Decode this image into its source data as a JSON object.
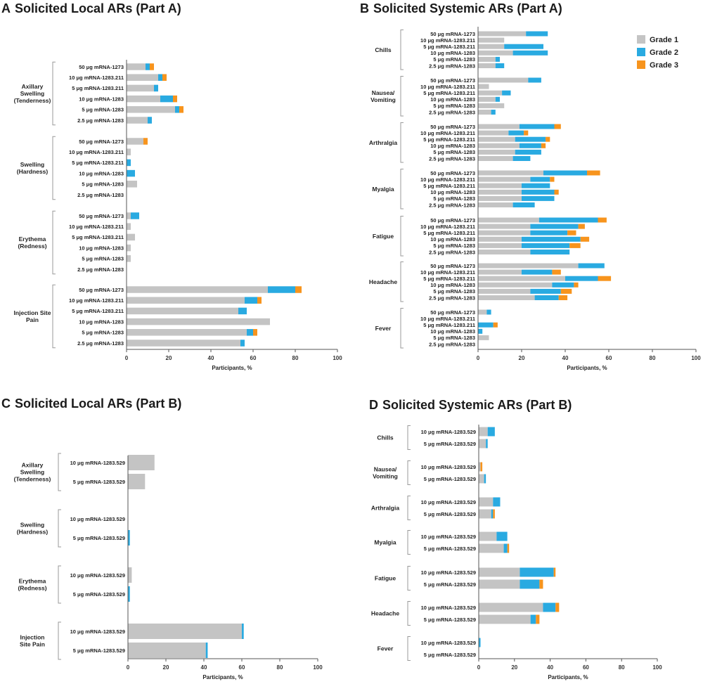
{
  "colors": {
    "grade1": "#c4c4c4",
    "grade2": "#29aae1",
    "grade3": "#f7941d"
  },
  "legend": [
    "Grade 1",
    "Grade 2",
    "Grade 3"
  ],
  "chart_data": [
    {
      "type": "bar",
      "orientation": "horizontal",
      "stacked": true,
      "panel": "A",
      "title": "Solicited Local ARs (Part  A)",
      "xlabel": "Participants, %",
      "xlim": [
        0,
        100
      ],
      "xticks": [
        0,
        20,
        40,
        60,
        80,
        100
      ],
      "groups": [
        {
          "name": [
            "Axillary",
            "Swelling",
            "(Tenderness)"
          ],
          "rows": [
            {
              "label": "50 μg mRNA-1273",
              "values": [
                9,
                2,
                2
              ]
            },
            {
              "label": "10 μg mRNA-1283.211",
              "values": [
                15,
                2,
                2
              ]
            },
            {
              "label": "5 μg mRNA-1283.211",
              "values": [
                13,
                2,
                0
              ]
            },
            {
              "label": "10 μg mRNA-1283",
              "values": [
                16,
                6,
                2
              ]
            },
            {
              "label": "5 μg mRNA-1283",
              "values": [
                23,
                2,
                2
              ]
            },
            {
              "label": "2.5 μg mRNA-1283",
              "values": [
                10,
                2,
                0
              ]
            }
          ]
        },
        {
          "name": [
            "Swelling",
            "(Hardness)"
          ],
          "rows": [
            {
              "label": "50 μg mRNA-1273",
              "values": [
                8,
                0,
                2
              ]
            },
            {
              "label": "10 μg mRNA-1283.211",
              "values": [
                2,
                0,
                0
              ]
            },
            {
              "label": "5 μg mRNA-1283.211",
              "values": [
                0,
                2,
                0
              ]
            },
            {
              "label": "10 μg mRNA-1283",
              "values": [
                0,
                4,
                0
              ]
            },
            {
              "label": "5 μg mRNA-1283",
              "values": [
                5,
                0,
                0
              ]
            },
            {
              "label": "2.5 μg mRNA-1283",
              "values": [
                0,
                0,
                0
              ]
            }
          ]
        },
        {
          "name": [
            "Erythema",
            "(Redness)"
          ],
          "rows": [
            {
              "label": "50 μg mRNA-1273",
              "values": [
                2,
                4,
                0
              ]
            },
            {
              "label": "10 μg mRNA-1283.211",
              "values": [
                2,
                0,
                0
              ]
            },
            {
              "label": "5 μg mRNA-1283.211",
              "values": [
                4,
                0,
                0
              ]
            },
            {
              "label": "10 μg mRNA-1283",
              "values": [
                2,
                0,
                0
              ]
            },
            {
              "label": "5 μg mRNA-1283",
              "values": [
                2,
                0,
                0
              ]
            },
            {
              "label": "2.5 μg mRNA-1283",
              "values": [
                0,
                0,
                0
              ]
            }
          ]
        },
        {
          "name": [
            "Injection Site",
            "Pain"
          ],
          "rows": [
            {
              "label": "50 μg mRNA-1273",
              "values": [
                67,
                13,
                3
              ]
            },
            {
              "label": "10 μg mRNA-1283.211",
              "values": [
                56,
                6,
                2
              ]
            },
            {
              "label": "5 μg mRNA-1283.211",
              "values": [
                53,
                4,
                0
              ]
            },
            {
              "label": "10 μg mRNA-1283",
              "values": [
                68,
                0,
                0
              ]
            },
            {
              "label": "5 μg mRNA-1283",
              "values": [
                57,
                3,
                2
              ]
            },
            {
              "label": "2.5 μg mRNA-1283",
              "values": [
                54,
                2,
                0
              ]
            }
          ]
        }
      ]
    },
    {
      "type": "bar",
      "orientation": "horizontal",
      "stacked": true,
      "panel": "B",
      "title": "Solicited Systemic ARs (Part  A)",
      "xlabel": "Participants, %",
      "xlim": [
        0,
        100
      ],
      "xticks": [
        0,
        20,
        40,
        60,
        80,
        100
      ],
      "groups": [
        {
          "name": [
            "Chills"
          ],
          "rows": [
            {
              "label": "50 μg mRNA-1273",
              "values": [
                22,
                10,
                0
              ]
            },
            {
              "label": "10 μg mRNA-1283.211",
              "values": [
                12,
                0,
                0
              ]
            },
            {
              "label": "5 μg mRNA-1283.211",
              "values": [
                12,
                18,
                0
              ]
            },
            {
              "label": "10 μg mRNA-1283",
              "values": [
                16,
                16,
                0
              ]
            },
            {
              "label": "5 μg mRNA-1283",
              "values": [
                8,
                2,
                0
              ]
            },
            {
              "label": "2.5 μg mRNA-1283",
              "values": [
                8,
                4,
                0
              ]
            }
          ]
        },
        {
          "name": [
            "Nausea/",
            "Vomiting"
          ],
          "rows": [
            {
              "label": "50 μg mRNA-1273",
              "values": [
                23,
                6,
                0
              ]
            },
            {
              "label": "10 μg mRNA-1283.211",
              "values": [
                5,
                0,
                0
              ]
            },
            {
              "label": "5 μg mRNA-1283.211",
              "values": [
                11,
                4,
                0
              ]
            },
            {
              "label": "10 μg mRNA-1283",
              "values": [
                8,
                2,
                0
              ]
            },
            {
              "label": "5 μg mRNA-1283",
              "values": [
                12,
                0,
                0
              ]
            },
            {
              "label": "2.5 μg mRNA-1283",
              "values": [
                6,
                2,
                0
              ]
            }
          ]
        },
        {
          "name": [
            "Arthralgia"
          ],
          "rows": [
            {
              "label": "50 μg mRNA-1273",
              "values": [
                19,
                16,
                3
              ]
            },
            {
              "label": "10 μg mRNA-1283.211",
              "values": [
                14,
                7,
                2
              ]
            },
            {
              "label": "5 μg mRNA-1283.211",
              "values": [
                17,
                14,
                2
              ]
            },
            {
              "label": "10 μg mRNA-1283",
              "values": [
                19,
                10,
                2
              ]
            },
            {
              "label": "5 μg mRNA-1283",
              "values": [
                17,
                12,
                0
              ]
            },
            {
              "label": "2.5 μg mRNA-1283",
              "values": [
                16,
                8,
                0
              ]
            }
          ]
        },
        {
          "name": [
            "Myalgia"
          ],
          "rows": [
            {
              "label": "50 μg mRNA-1273",
              "values": [
                30,
                20,
                6
              ]
            },
            {
              "label": "10 μg mRNA-1283.211",
              "values": [
                24,
                9,
                2
              ]
            },
            {
              "label": "5 μg mRNA-1283.211",
              "values": [
                20,
                13,
                0
              ]
            },
            {
              "label": "10 μg mRNA-1283",
              "values": [
                20,
                15,
                2
              ]
            },
            {
              "label": "5 μg mRNA-1283",
              "values": [
                20,
                15,
                0
              ]
            },
            {
              "label": "2.5 μg mRNA-1283",
              "values": [
                16,
                10,
                0
              ]
            }
          ]
        },
        {
          "name": [
            "Fatigue"
          ],
          "rows": [
            {
              "label": "50 μg mRNA-1273",
              "values": [
                28,
                27,
                4
              ]
            },
            {
              "label": "10 μg mRNA-1283.211",
              "values": [
                24,
                22,
                3
              ]
            },
            {
              "label": "5 μg mRNA-1283.211",
              "values": [
                24,
                17,
                4
              ]
            },
            {
              "label": "10 μg mRNA-1283",
              "values": [
                20,
                27,
                4
              ]
            },
            {
              "label": "5 μg mRNA-1283",
              "values": [
                20,
                22,
                5
              ]
            },
            {
              "label": "2.5 μg mRNA-1283",
              "values": [
                24,
                18,
                0
              ]
            }
          ]
        },
        {
          "name": [
            "Headache"
          ],
          "rows": [
            {
              "label": "50 μg mRNA-1273",
              "values": [
                46,
                12,
                0
              ]
            },
            {
              "label": "10 μg mRNA-1283.211",
              "values": [
                20,
                14,
                4
              ]
            },
            {
              "label": "5 μg mRNA-1283.211",
              "values": [
                40,
                15,
                6
              ]
            },
            {
              "label": "10 μg mRNA-1283",
              "values": [
                34,
                10,
                2
              ]
            },
            {
              "label": "5 μg mRNA-1283",
              "values": [
                24,
                14,
                5
              ]
            },
            {
              "label": "2.5 μg mRNA-1283",
              "values": [
                26,
                11,
                4
              ]
            }
          ]
        },
        {
          "name": [
            "Fever"
          ],
          "rows": [
            {
              "label": "50 μg mRNA-1273",
              "values": [
                4,
                2,
                0
              ]
            },
            {
              "label": "10 μg mRNA-1283.211",
              "values": [
                0,
                0,
                0
              ]
            },
            {
              "label": "5 μg mRNA-1283.211",
              "values": [
                0,
                7,
                2
              ]
            },
            {
              "label": "10 μg mRNA-1283",
              "values": [
                0,
                2,
                0
              ]
            },
            {
              "label": "5 μg mRNA-1283",
              "values": [
                5,
                0,
                0
              ]
            },
            {
              "label": "2.5 μg mRNA-1283",
              "values": [
                0,
                0,
                0
              ]
            }
          ]
        }
      ]
    },
    {
      "type": "bar",
      "orientation": "horizontal",
      "stacked": true,
      "panel": "C",
      "title": "Solicited Local ARs (Part  B)",
      "xlabel": "Participants, %",
      "xlim": [
        0,
        100
      ],
      "xticks": [
        0,
        20,
        40,
        60,
        80,
        100
      ],
      "groups": [
        {
          "name": [
            "Axillary",
            "Swelling",
            "(Tenderness)"
          ],
          "rows": [
            {
              "label": "10 μg mRNA-1283.529",
              "values": [
                14,
                0,
                0
              ]
            },
            {
              "label": "5 μg mRNA-1283.529",
              "values": [
                9,
                0,
                0
              ]
            }
          ]
        },
        {
          "name": [
            "Swelling",
            "(Hardness)"
          ],
          "rows": [
            {
              "label": "10 μg mRNA-1283.529",
              "values": [
                0,
                0,
                0
              ]
            },
            {
              "label": "5 μg mRNA-1283.529",
              "values": [
                0,
                1,
                0
              ]
            }
          ]
        },
        {
          "name": [
            "Erythema",
            "(Redness)"
          ],
          "rows": [
            {
              "label": "10 μg mRNA-1283.529",
              "values": [
                2,
                0,
                0
              ]
            },
            {
              "label": "5 μg mRNA-1283.529",
              "values": [
                0,
                1,
                0
              ]
            }
          ]
        },
        {
          "name": [
            "Injection",
            "Site Pain"
          ],
          "rows": [
            {
              "label": "10 μg mRNA-1283.529",
              "values": [
                60,
                1,
                0
              ]
            },
            {
              "label": "5 μg mRNA-1283.529",
              "values": [
                41,
                1,
                0
              ]
            }
          ]
        }
      ]
    },
    {
      "type": "bar",
      "orientation": "horizontal",
      "stacked": true,
      "panel": "D",
      "title": "Solicited Systemic ARs (Part  B)",
      "xlabel": "Participants, %",
      "xlim": [
        0,
        100
      ],
      "xticks": [
        0,
        20,
        40,
        60,
        80,
        100
      ],
      "groups": [
        {
          "name": [
            "Chills"
          ],
          "rows": [
            {
              "label": "10 μg mRNA-1283.529",
              "values": [
                5,
                4,
                0
              ]
            },
            {
              "label": "5 μg mRNA-1283.529",
              "values": [
                4,
                1,
                0
              ]
            }
          ]
        },
        {
          "name": [
            "Nausea/",
            "Vomiting"
          ],
          "rows": [
            {
              "label": "10 μg mRNA-1283.529",
              "values": [
                1,
                0,
                1
              ]
            },
            {
              "label": "5 μg mRNA-1283.529",
              "values": [
                3,
                1,
                0
              ]
            }
          ]
        },
        {
          "name": [
            "Arthralgia"
          ],
          "rows": [
            {
              "label": "10 μg mRNA-1283.529",
              "values": [
                8,
                4,
                0
              ]
            },
            {
              "label": "5 μg mRNA-1283.529",
              "values": [
                7,
                1,
                1
              ]
            }
          ]
        },
        {
          "name": [
            "Myalgia"
          ],
          "rows": [
            {
              "label": "10 μg mRNA-1283.529",
              "values": [
                10,
                6,
                0
              ]
            },
            {
              "label": "5 μg mRNA-1283.529",
              "values": [
                14,
                2,
                1
              ]
            }
          ]
        },
        {
          "name": [
            "Fatigue"
          ],
          "rows": [
            {
              "label": "10 μg mRNA-1283.529",
              "values": [
                23,
                19,
                1
              ]
            },
            {
              "label": "5 μg mRNA-1283.529",
              "values": [
                23,
                11,
                2
              ]
            }
          ]
        },
        {
          "name": [
            "Headache"
          ],
          "rows": [
            {
              "label": "10 μg mRNA-1283.529",
              "values": [
                36,
                7,
                2
              ]
            },
            {
              "label": "5 μg mRNA-1283.529",
              "values": [
                29,
                3,
                2
              ]
            }
          ]
        },
        {
          "name": [
            "Fever"
          ],
          "rows": [
            {
              "label": "10 μg mRNA-1283.529",
              "values": [
                0,
                1,
                0
              ]
            },
            {
              "label": "5 μg mRNA-1283.529",
              "values": [
                0,
                0,
                0
              ]
            }
          ]
        }
      ]
    }
  ]
}
